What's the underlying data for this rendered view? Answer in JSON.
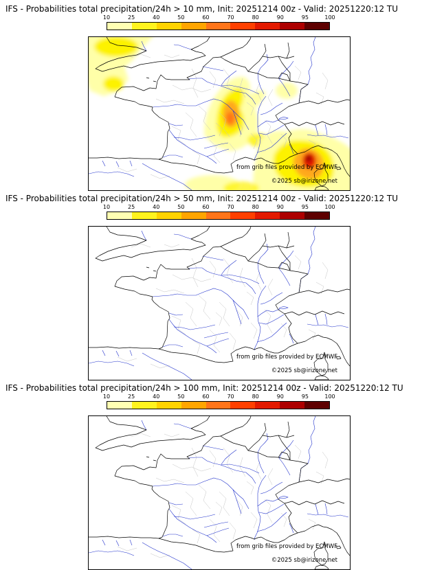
{
  "panels": [
    {
      "title": "IFS - Probabilities total precipitation/24h > 10 mm, Init: 20251214 00z - Valid: 20251220:12 TU"
    },
    {
      "title": "IFS - Probabilities total precipitation/24h > 50 mm, Init: 20251214 00z - Valid: 20251220:12 TU"
    },
    {
      "title": "IFS - Probabilities total precipitation/24h > 100 mm, Init: 20251214 00z - Valid: 20251220:12 TU"
    }
  ],
  "colorbar": {
    "ticks": [
      "10",
      "25",
      "40",
      "50",
      "60",
      "70",
      "80",
      "90",
      "95",
      "100"
    ],
    "colors": [
      "#ffffb3",
      "#fff31e",
      "#ffd300",
      "#ffa500",
      "#ff7519",
      "#ff4000",
      "#e31a00",
      "#ad0000",
      "#5e0000"
    ]
  },
  "attribution": {
    "line1": "from grib files provided by ECMWF",
    "line2": "©2025 sb@irizone.net"
  },
  "map_colors": {
    "coastline": "#000000",
    "admin_border": "#c4c4c4",
    "river": "#2233cc",
    "frame": "#000000"
  }
}
